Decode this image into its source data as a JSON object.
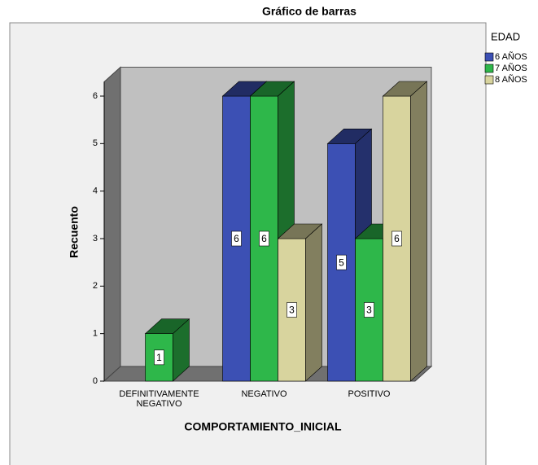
{
  "chart_data": {
    "type": "bar3d",
    "title": "Gráfico de barras",
    "xlabel": "COMPORTAMIENTO_INICIAL",
    "ylabel": "Recuento",
    "legend_title": "EDAD",
    "legend": "right",
    "categories": [
      "DEFINITIVAMENTE NEGATIVO",
      "NEGATIVO",
      "POSITIVO"
    ],
    "series": [
      {
        "name": "6 AÑOS",
        "color": "#3c50b4",
        "values": [
          null,
          6,
          5
        ]
      },
      {
        "name": "7 AÑOS",
        "color": "#2eb74a",
        "values": [
          1,
          6,
          3
        ]
      },
      {
        "name": "8 AÑOS",
        "color": "#d8d49e",
        "values": [
          null,
          3,
          6
        ]
      }
    ],
    "ylim": [
      0,
      6.3
    ],
    "yticks": [
      0,
      1,
      2,
      3,
      4,
      5,
      6
    ]
  }
}
